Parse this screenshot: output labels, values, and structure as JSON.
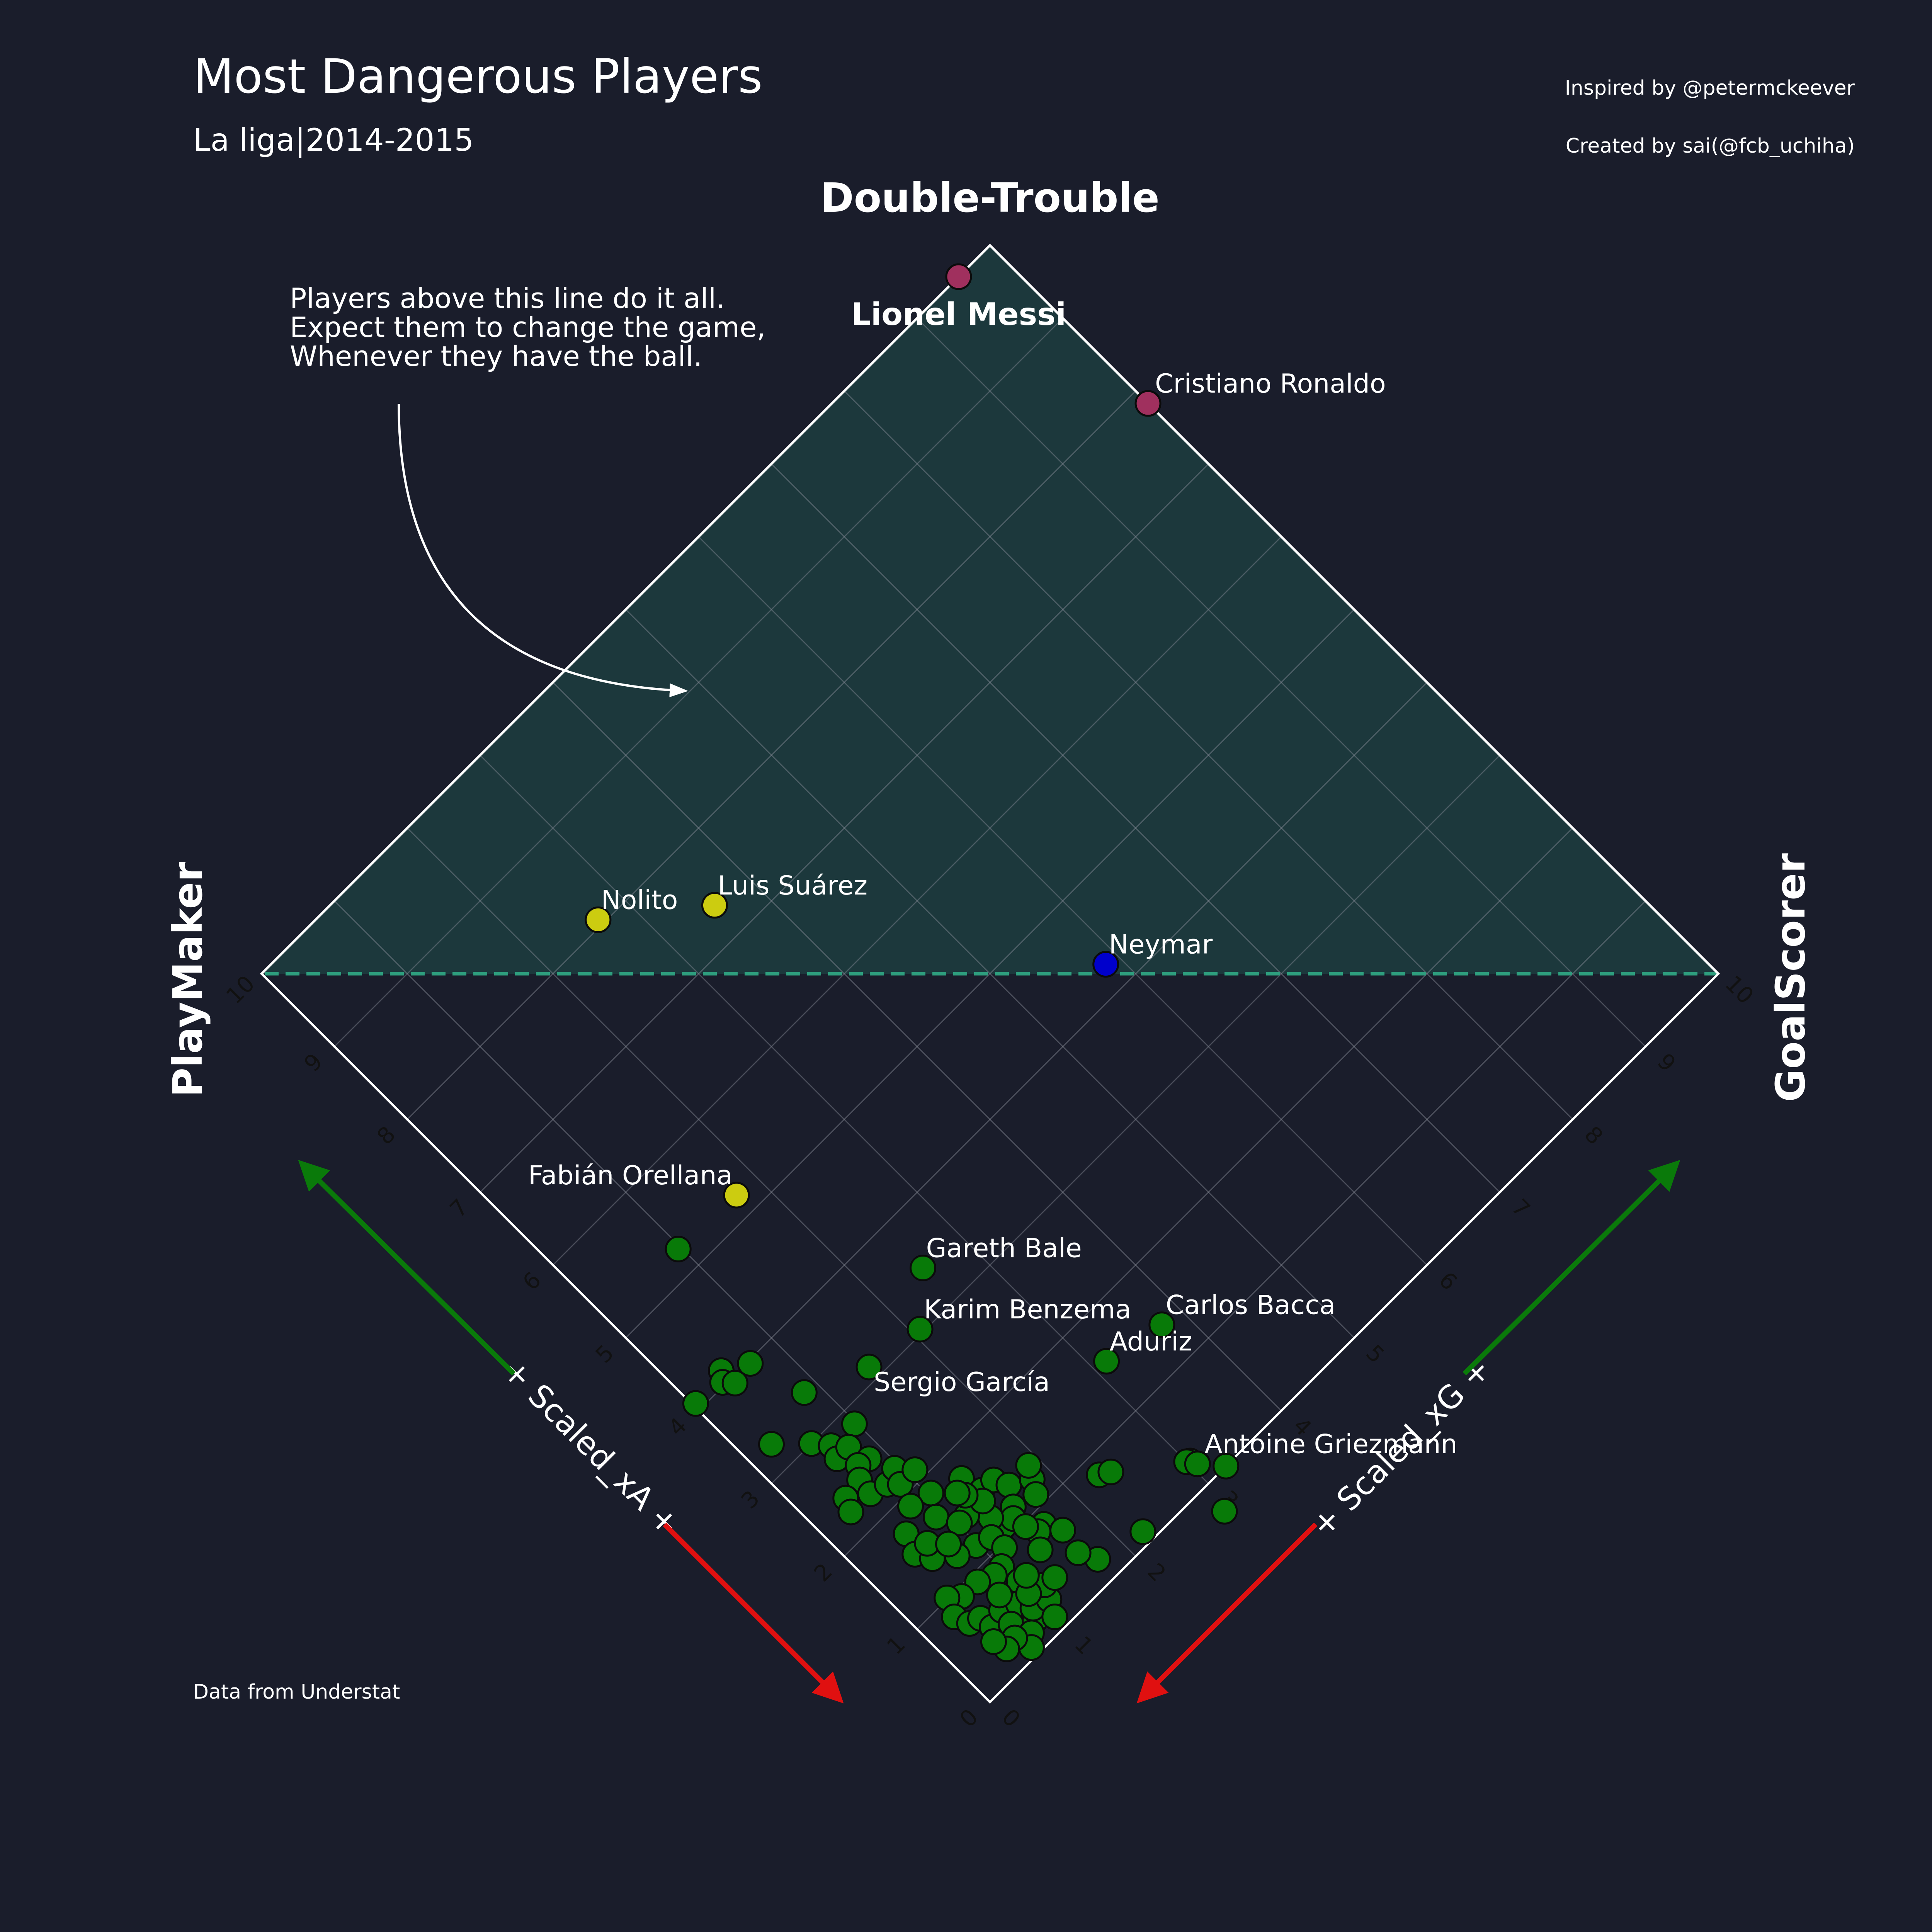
{
  "header": {
    "title": "Most Dangerous Players",
    "subtitle": "La liga|2014-2015",
    "credit_1": "Inspired by @petermckeever",
    "credit_2": "Created by sai(@fcb_uchiha)",
    "source": "Data from Understat"
  },
  "chart_data": {
    "type": "scatter",
    "orientation": "axes rotated 45 degrees",
    "zone_title": "Double-Trouble",
    "left_label": "PlayMaker",
    "right_label": "GoalScorer",
    "xlabel": "+ Scaled_xG +",
    "ylabel": "+ Scaled_xA +",
    "xlim": [
      0,
      10
    ],
    "ylim": [
      0,
      10
    ],
    "ticks": [
      "0",
      "1",
      "2",
      "3",
      "4",
      "5",
      "6",
      "7",
      "8",
      "9",
      "10"
    ],
    "grid": true,
    "highlight_zone": {
      "xG_min": 0,
      "xA_min": 0,
      "xG_plus_xA_min": 10
    },
    "annotation": "Players above this line do it all.\nExpect them to change the game,\nWhenever they have the ball.",
    "colors": {
      "background": "#1a1d2b",
      "zone_fill": "#1c383c",
      "zone_line": "#2e9e7e",
      "double_trouble": "#a0305e",
      "playmaker": "#cccc10",
      "balanced": "#0000cc",
      "other": "#087a08",
      "arrow_positive": "#0a7a0a",
      "arrow_negative": "#e01010"
    },
    "labeled_players": [
      {
        "name": "Lionel Messi",
        "xG": 9.57,
        "xA": 10.0,
        "group": "double_trouble"
      },
      {
        "name": "Cristiano Ronaldo",
        "xG": 10.0,
        "xA": 7.83,
        "group": "double_trouble"
      },
      {
        "name": "Neymar",
        "xG": 5.86,
        "xA": 4.27,
        "group": "balanced"
      },
      {
        "name": "Luis Suárez",
        "xG": 3.58,
        "xA": 7.36,
        "group": "playmaker"
      },
      {
        "name": "Nolito",
        "xG": 2.68,
        "xA": 8.06,
        "group": "playmaker"
      },
      {
        "name": "Fabián Orellana",
        "xG": 1.74,
        "xA": 5.22,
        "group": "playmaker"
      },
      {
        "name": "Gareth Bale",
        "xG": 2.52,
        "xA": 3.44,
        "group": "other"
      },
      {
        "name": "Karim Benzema",
        "xG": 2.08,
        "xA": 3.04,
        "group": "other"
      },
      {
        "name": "Sergio García",
        "xG": 1.47,
        "xA": 3.13,
        "group": "other"
      },
      {
        "name": "Carlos Bacca",
        "xG": 3.77,
        "xA": 1.41,
        "group": "other"
      },
      {
        "name": "Aduriz",
        "xG": 3.14,
        "xA": 1.54,
        "group": "other"
      },
      {
        "name": "Antoine Griezmann",
        "xG": 3.06,
        "xA": 0.21,
        "group": "other"
      }
    ],
    "unlabeled_players": [
      [
        0.97,
        5.25
      ],
      [
        0.85,
        3.4
      ],
      [
        0.03,
        4.07
      ],
      [
        0.43,
        4.12
      ],
      [
        0.68,
        3.97
      ],
      [
        0.36,
        4.03
      ],
      [
        0.44,
        3.94
      ],
      [
        0.27,
        3.27
      ],
      [
        0.55,
        3.0
      ],
      [
        0.67,
        2.85
      ],
      [
        0.62,
        2.72
      ],
      [
        0.98,
        2.84
      ],
      [
        0.78,
        2.72
      ],
      [
        2.31,
        0.81
      ],
      [
        2.41,
        0.75
      ],
      [
        3.03,
        0.28
      ],
      [
        3.0,
        0.3
      ],
      [
        2.22,
        0.12
      ],
      [
        1.72,
        0.24
      ],
      [
        3.24,
        -0.0
      ],
      [
        2.92,
        -0.3
      ],
      [
        1.63,
        0.42
      ],
      [
        0.84,
        2.5
      ],
      [
        0.72,
        2.53
      ],
      [
        0.63,
        2.42
      ],
      [
        0.41,
        2.39
      ],
      [
        0.35,
        2.26
      ],
      [
        0.61,
        2.25
      ],
      [
        0.79,
        2.2
      ],
      [
        0.95,
        2.26
      ],
      [
        0.88,
        2.11
      ],
      [
        1.08,
        2.11
      ],
      [
        1.03,
        1.84
      ],
      [
        1.34,
        1.73
      ],
      [
        1.4,
        1.51
      ],
      [
        1.55,
        1.5
      ],
      [
        1.62,
        1.36
      ],
      [
        1.82,
        1.24
      ],
      [
        1.89,
        1.36
      ],
      [
        1.74,
        1.11
      ],
      [
        1.5,
        1.18
      ],
      [
        1.3,
        1.11
      ],
      [
        1.42,
        1.1
      ],
      [
        1.27,
        1.26
      ],
      [
        1.12,
        1.44
      ],
      [
        1.33,
        1.43
      ],
      [
        1.25,
        1.59
      ],
      [
        0.8,
        1.89
      ],
      [
        0.9,
        1.64
      ],
      [
        1.21,
        1.66
      ],
      [
        1.02,
        1.44
      ],
      [
        0.98,
        1.17
      ],
      [
        0.78,
        1.23
      ],
      [
        0.58,
        1.73
      ],
      [
        0.5,
        1.53
      ],
      [
        0.59,
        1.38
      ],
      [
        0.66,
        1.52
      ],
      [
        0.8,
        1.37
      ],
      [
        1.14,
        1.12
      ],
      [
        1.59,
        0.85
      ],
      [
        1.68,
        0.68
      ],
      [
        1.5,
        0.84
      ],
      [
        1.45,
        0.96
      ],
      [
        1.39,
        0.7
      ],
      [
        1.16,
        0.96
      ],
      [
        1.01,
        0.85
      ],
      [
        1.03,
        0.63
      ],
      [
        0.9,
        0.84
      ],
      [
        0.74,
        0.91
      ],
      [
        0.53,
        0.92
      ],
      [
        0.42,
        1.01
      ],
      [
        0.34,
        0.83
      ],
      [
        0.4,
        0.68
      ],
      [
        0.51,
        0.64
      ],
      [
        0.53,
        0.5
      ],
      [
        0.71,
        0.55
      ],
      [
        0.87,
        0.48
      ],
      [
        0.8,
        0.67
      ],
      [
        0.68,
        0.39
      ],
      [
        0.87,
        0.25
      ],
      [
        0.94,
        0.35
      ],
      [
        1.11,
        0.3
      ],
      [
        1.03,
        0.14
      ],
      [
        0.76,
        0.19
      ],
      [
        0.66,
        0.09
      ],
      [
        0.61,
        0.27
      ],
      [
        0.48,
        0.25
      ],
      [
        0.44,
        0.39
      ],
      [
        1.18,
        0.43
      ],
      [
        1.01,
        0.48
      ],
      [
        1.3,
        0.41
      ],
      [
        1.12,
        0.62
      ]
    ]
  }
}
